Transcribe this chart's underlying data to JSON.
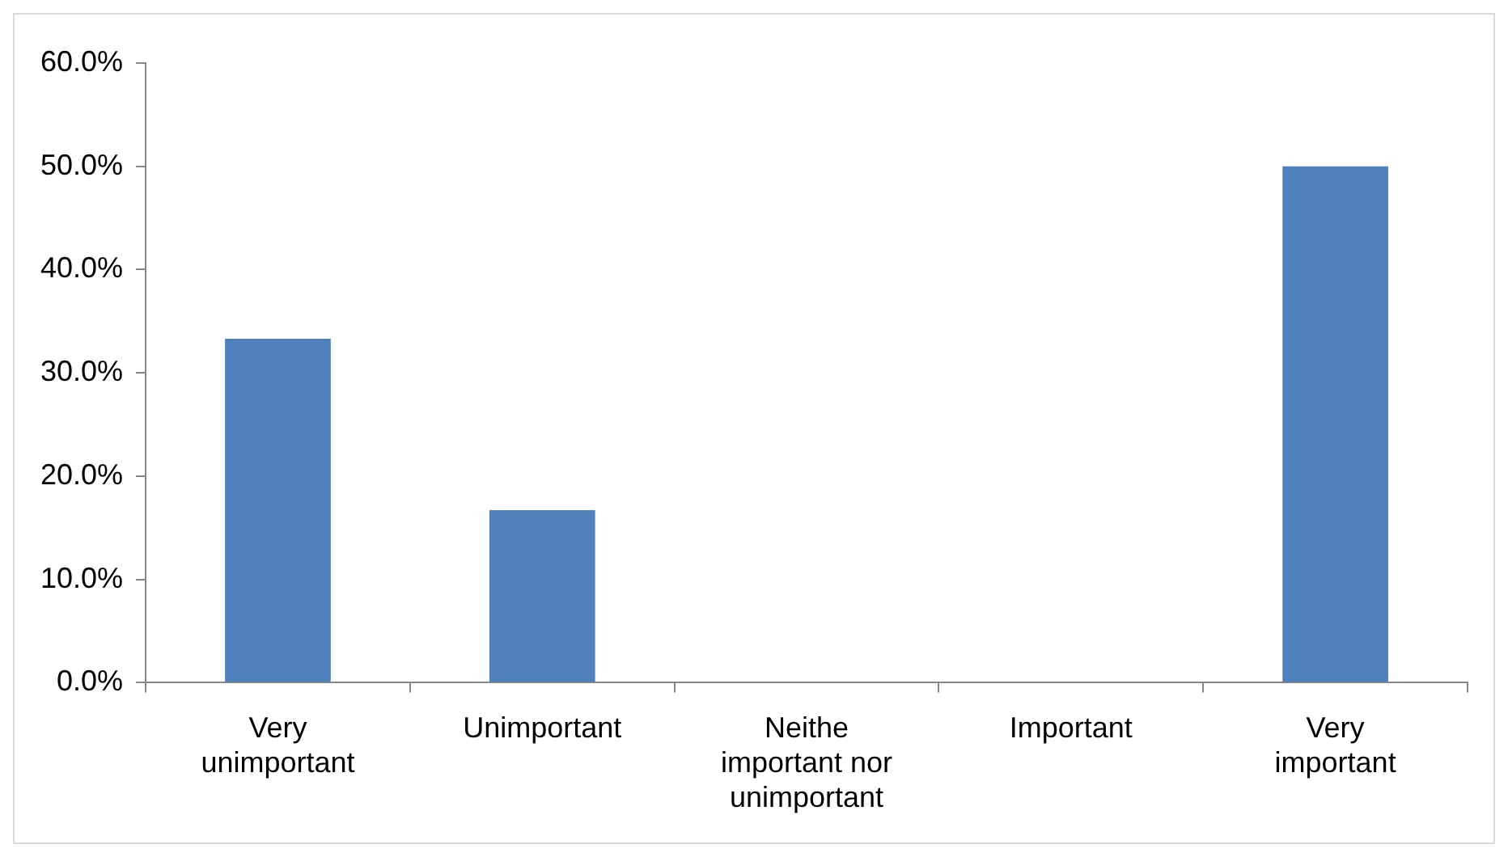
{
  "chart_data": {
    "type": "bar",
    "categories": [
      "Very unimportant",
      "Unimportant",
      "Neithe important nor unimportant",
      "Important",
      "Very important"
    ],
    "values": [
      33.3,
      16.7,
      0,
      0,
      50
    ],
    "color": "#4f81bd",
    "ylim": [
      0,
      60
    ],
    "yticks": [
      {
        "value": 0,
        "label": "0.0%"
      },
      {
        "value": 10,
        "label": "10.0%"
      },
      {
        "value": 20,
        "label": "20.0%"
      },
      {
        "value": 30,
        "label": "30.0%"
      },
      {
        "value": 40,
        "label": "40.0%"
      },
      {
        "value": 50,
        "label": "50.0%"
      },
      {
        "value": 60,
        "label": "60.0%"
      }
    ],
    "grid": false,
    "legend": false
  }
}
